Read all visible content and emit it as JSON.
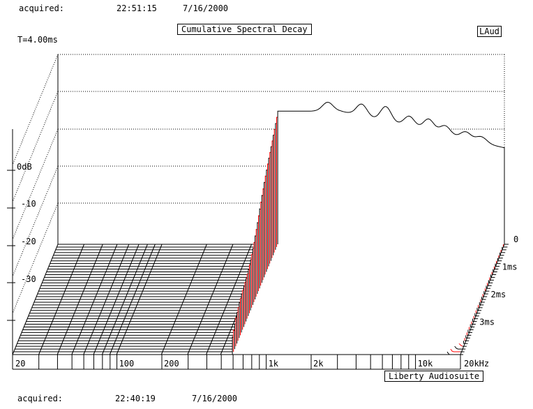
{
  "header": {
    "acquired_label": "acquired:",
    "time": "22:51:15",
    "date": "7/16/2000"
  },
  "title": "Cumulative Spectral Decay",
  "logo": "LAud",
  "time_window": "T=4.00ms",
  "footer": {
    "acquired_label": "acquired:",
    "time": "22:40:19",
    "date": "7/16/2000"
  },
  "brand": "Liberty Audiosuite",
  "chart_data": {
    "type": "waterfall",
    "title": "Cumulative Spectral Decay",
    "x_axis": {
      "scale": "log",
      "range": [
        20,
        20000
      ],
      "tick_labels": [
        "20",
        "100",
        "200",
        "1k",
        "2k",
        "10k",
        "20kHz"
      ],
      "tick_values": [
        20,
        100,
        200,
        1000,
        2000,
        10000,
        20000
      ]
    },
    "y_axis": {
      "tick_labels": [
        "0dB",
        "-10",
        "-20",
        "-30"
      ],
      "tick_values": [
        0,
        -10,
        -20,
        -30
      ]
    },
    "z_axis": {
      "tick_labels": [
        "0",
        "1ms",
        "2ms",
        "3ms"
      ],
      "tick_values": [
        0,
        1,
        2,
        3
      ],
      "range": [
        0,
        4
      ]
    },
    "grid": true,
    "slices": 40,
    "colors": {
      "primary": "#000000",
      "secondary": "#ff0000"
    }
  }
}
